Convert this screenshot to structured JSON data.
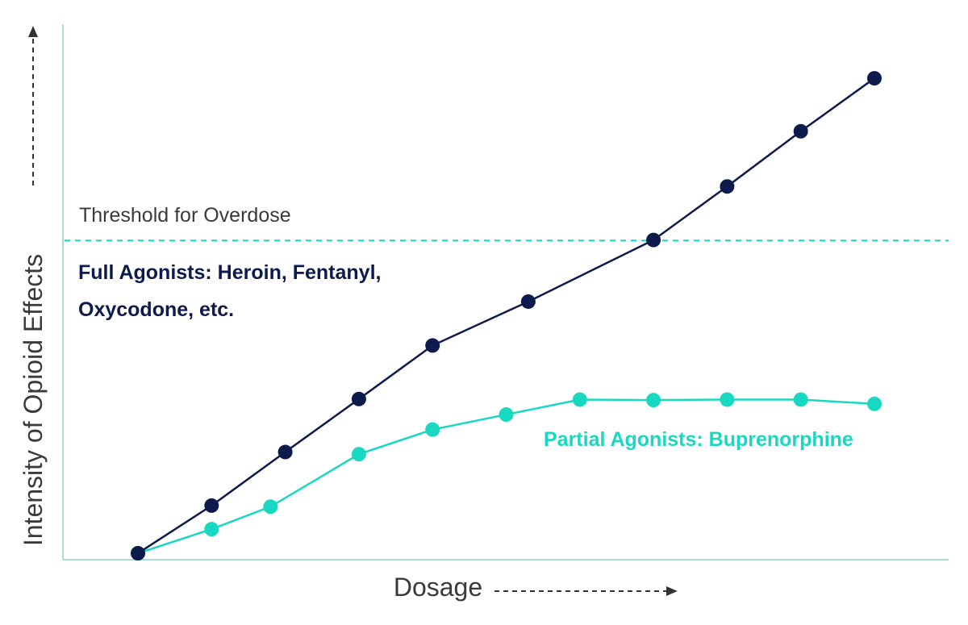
{
  "chart_data": {
    "type": "line",
    "title": "",
    "xlabel": "Dosage",
    "ylabel": "Intensity of Opioid Effects",
    "xlim": [
      0,
      12
    ],
    "ylim": [
      0,
      100
    ],
    "grid": false,
    "threshold": {
      "label": "Threshold for Overdose",
      "value": 59.6
    },
    "series": [
      {
        "name": "Full Agonists: Heroin, Fentanyl, Oxycodone, etc.",
        "label_lines": [
          "Full Agonists: Heroin, Fentanyl,",
          "Oxycodone, etc."
        ],
        "color": "#0d1b4c",
        "x": [
          1,
          2,
          3,
          4,
          5,
          6.3,
          8,
          9,
          10,
          11
        ],
        "y": [
          1.2,
          10.1,
          20.1,
          30.0,
          40.0,
          48.2,
          59.7,
          69.7,
          80.0,
          89.9
        ]
      },
      {
        "name": "Partial Agonists: Buprenorphine",
        "label_lines": [
          "Partial Agonists: Buprenorphine"
        ],
        "color": "#19d8c2",
        "x": [
          1,
          2,
          2.8,
          4,
          5,
          6,
          7,
          8,
          9,
          10,
          11
        ],
        "y": [
          1.2,
          5.7,
          9.9,
          19.7,
          24.3,
          27.1,
          29.9,
          29.8,
          29.9,
          29.9,
          29.1
        ]
      }
    ],
    "colors": {
      "axis": "#a8dcd6",
      "threshold": "#19d8c2",
      "text": "#3a3a3a",
      "arrow": "#333333"
    }
  }
}
